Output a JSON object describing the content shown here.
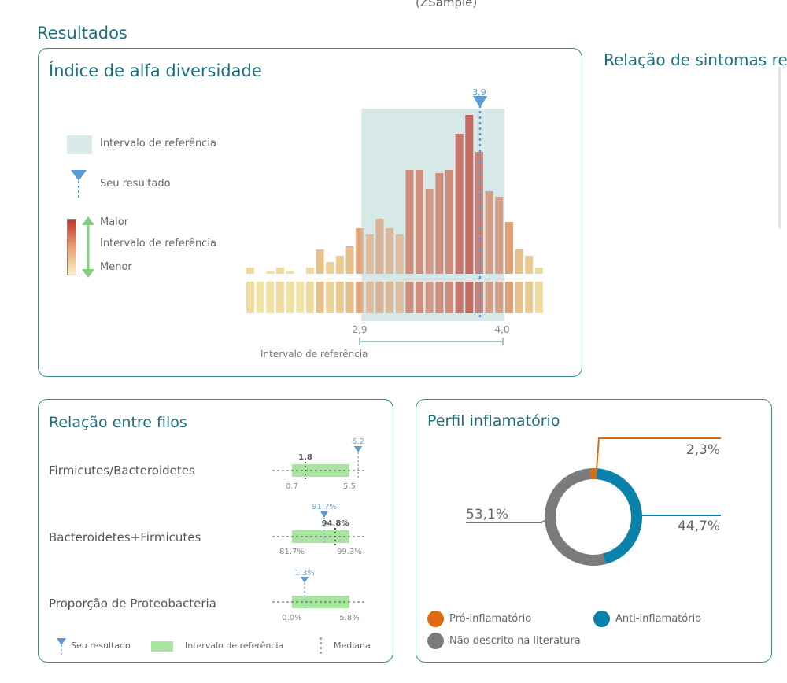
{
  "header": {
    "sample": "(ZSample)",
    "section_title": "Resultados",
    "right_panel_title": "Relação de sintomas rel"
  },
  "alpha": {
    "title": "Índice de alfa diversidade",
    "legend": {
      "reference": "Intervalo de referência",
      "result": "Seu resultado",
      "higher": "Maior",
      "middle": "Intervalo de referência",
      "lower": "Menor"
    },
    "chart_data": {
      "type": "bar",
      "relative_heights": [
        8,
        0,
        4,
        8,
        4,
        0,
        8,
        31,
        15,
        23,
        35,
        58,
        50,
        70,
        58,
        50,
        132,
        132,
        108,
        128,
        132,
        178,
        202,
        155,
        105,
        98,
        66,
        31,
        23,
        8
      ],
      "result_bin_index": 23,
      "result_label": "3,9",
      "reference_low_label": "2,9",
      "reference_high_label": "4,0",
      "reference_bins": [
        11,
        25
      ],
      "xlabel": "Intervalo de referência",
      "colors": {
        "low": "#f3e8a8",
        "high": "#c0352b",
        "reference": "#d8eaea",
        "marker": "#5b9bd5"
      }
    }
  },
  "filos": {
    "title": "Relação entre filos",
    "rows": [
      {
        "label": "Firmicutes/Bacteroidetes",
        "median": "1.8",
        "result": "6.2",
        "low": "0.7",
        "high": "5.5"
      },
      {
        "label": "Bacteroidetes+Firmicutes",
        "median": "94.8%",
        "result": "91.7%",
        "low": "81.7%",
        "high": "99.3%"
      },
      {
        "label": "Proporção de Proteobacteria",
        "median": "",
        "result": "1.3%",
        "low": "0.0%",
        "high": "5.8%"
      }
    ],
    "legend": {
      "result": "Seu resultado",
      "reference": "Intervalo de referência",
      "median": "Mediana"
    }
  },
  "inflam": {
    "title": "Perfil inflamatório",
    "chart_data": {
      "type": "pie",
      "slices": [
        {
          "name": "Pró-inflamatório",
          "value": 2.3,
          "label": "2,3%",
          "color": "#e06a10"
        },
        {
          "name": "Anti-inflamatório",
          "value": 44.7,
          "label": "44,7%",
          "color": "#0a82ab"
        },
        {
          "name": "Não descrito na literatura",
          "value": 53.1,
          "label": "53,1%",
          "color": "#7b7b7b"
        }
      ]
    }
  }
}
